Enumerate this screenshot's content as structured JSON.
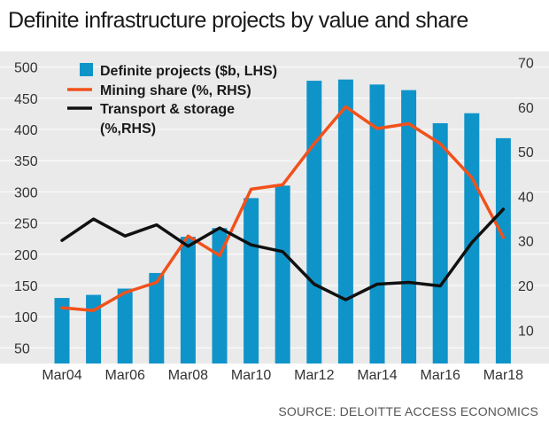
{
  "chart_data": {
    "type": "bar",
    "title": "Definite infrastructure projects by value and share",
    "source": "SOURCE: DELOITTE ACCESS ECONOMICS",
    "categories": [
      "Mar04",
      "Mar05",
      "Mar06",
      "Mar07",
      "Mar08",
      "Mar09",
      "Mar10",
      "Mar11",
      "Mar12",
      "Mar13",
      "Mar14",
      "Mar15",
      "Mar16",
      "Mar17",
      "Mar18"
    ],
    "x_tick_labels": [
      "Mar04",
      "Mar06",
      "Mar08",
      "Mar10",
      "Mar12",
      "Mar14",
      "Mar16",
      "Mar18"
    ],
    "left_axis": {
      "ylim": [
        25,
        525
      ],
      "ticks": [
        50,
        100,
        150,
        200,
        250,
        300,
        350,
        400,
        450,
        500
      ]
    },
    "right_axis": {
      "ylim": [
        2.5,
        72.5
      ],
      "ticks": [
        10,
        20,
        30,
        40,
        50,
        60,
        70
      ]
    },
    "grid": "horizontal",
    "legend_position": "top-left",
    "series": [
      {
        "name": "Definite projects ($b, LHS)",
        "type": "bar",
        "axis": "left",
        "color": "#0f94c9",
        "values": [
          130,
          135,
          145,
          170,
          228,
          242,
          290,
          310,
          478,
          480,
          472,
          463,
          410,
          426,
          386
        ]
      },
      {
        "name": "Mining share (%, RHS)",
        "type": "line",
        "axis": "right",
        "color": "#f2511b",
        "values": [
          15,
          14.4,
          18.4,
          20.7,
          31.1,
          26.7,
          41.6,
          42.6,
          51.8,
          60.1,
          55.2,
          56.3,
          51.8,
          44.2,
          30.8
        ]
      },
      {
        "name": "Transport & storage",
        "name_line2": "(%,RHS)",
        "type": "line",
        "axis": "right",
        "color": "#111111",
        "values": [
          30.1,
          34.9,
          31.1,
          33.6,
          28.8,
          32.9,
          29.1,
          27.6,
          20.3,
          16.8,
          20.3,
          20.7,
          19.9,
          29.6,
          37.1
        ]
      }
    ]
  }
}
